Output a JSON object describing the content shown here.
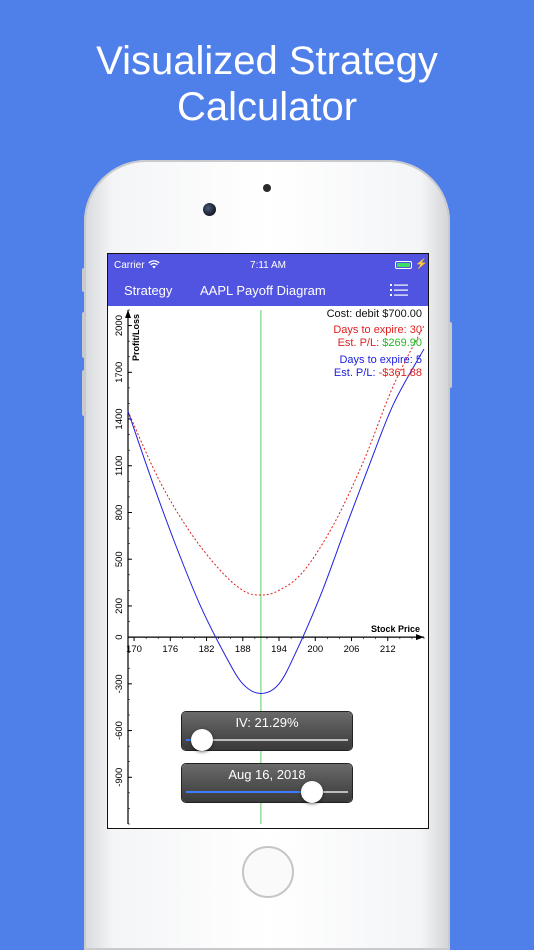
{
  "headline": {
    "line1": "Visualized Strategy",
    "line2": "Calculator"
  },
  "status_bar": {
    "carrier": "Carrier",
    "time": "7:11 AM"
  },
  "nav_bar": {
    "back_label": "Strategy",
    "title": "AAPL Payoff Diagram",
    "menu_icon": "list-icon"
  },
  "info": {
    "cost": "Cost: debit $700.00",
    "series1_days": "Days to expire: 30",
    "series1_pl_label": "Est. P/L: ",
    "series1_pl_value": "$269.90",
    "series2_days": "Days to expire: 5",
    "series2_pl_label": "Est. P/L: ",
    "series2_pl_value": "-$361.88"
  },
  "controls": {
    "iv_label": "IV: 21.29%",
    "iv_fraction": 0.1,
    "date_label": "Aug 16, 2018",
    "date_fraction": 0.78
  },
  "colors": {
    "background": "#4f7fe9",
    "nav": "#5154e0",
    "series_30": "#e02020",
    "series_5": "#2020e0",
    "positive_pl": "#22bb22",
    "negative_pl": "#e02020",
    "current_price_line": "#66cc66"
  },
  "chart_data": {
    "type": "line",
    "xlabel": "Stock Price",
    "ylabel": "Profit/Loss",
    "x_ticks": [
      170,
      176,
      182,
      188,
      194,
      200,
      206,
      212
    ],
    "y_ticks": [
      2000,
      1700,
      1400,
      1100,
      800,
      500,
      200,
      0,
      -300,
      -600,
      -900
    ],
    "xlim": [
      169,
      218
    ],
    "ylim": [
      -1200,
      2100
    ],
    "current_price": 191,
    "series": [
      {
        "style": "dotted",
        "color": "#e02020",
        "x": [
          169,
          174,
          179,
          184,
          188,
          191,
          194,
          198,
          203,
          208,
          213,
          218
        ],
        "y": [
          1450,
          1020,
          690,
          440,
          300,
          270,
          300,
          420,
          720,
          1130,
          1620,
          2000
        ]
      },
      {
        "style": "solid",
        "color": "#2020e0",
        "x": [
          169,
          173,
          177,
          181,
          185,
          188,
          191,
          194,
          197,
          201,
          205,
          209,
          213,
          218
        ],
        "y": [
          1450,
          1000,
          580,
          200,
          -110,
          -300,
          -362,
          -300,
          -80,
          280,
          700,
          1110,
          1500,
          1850
        ]
      }
    ]
  }
}
